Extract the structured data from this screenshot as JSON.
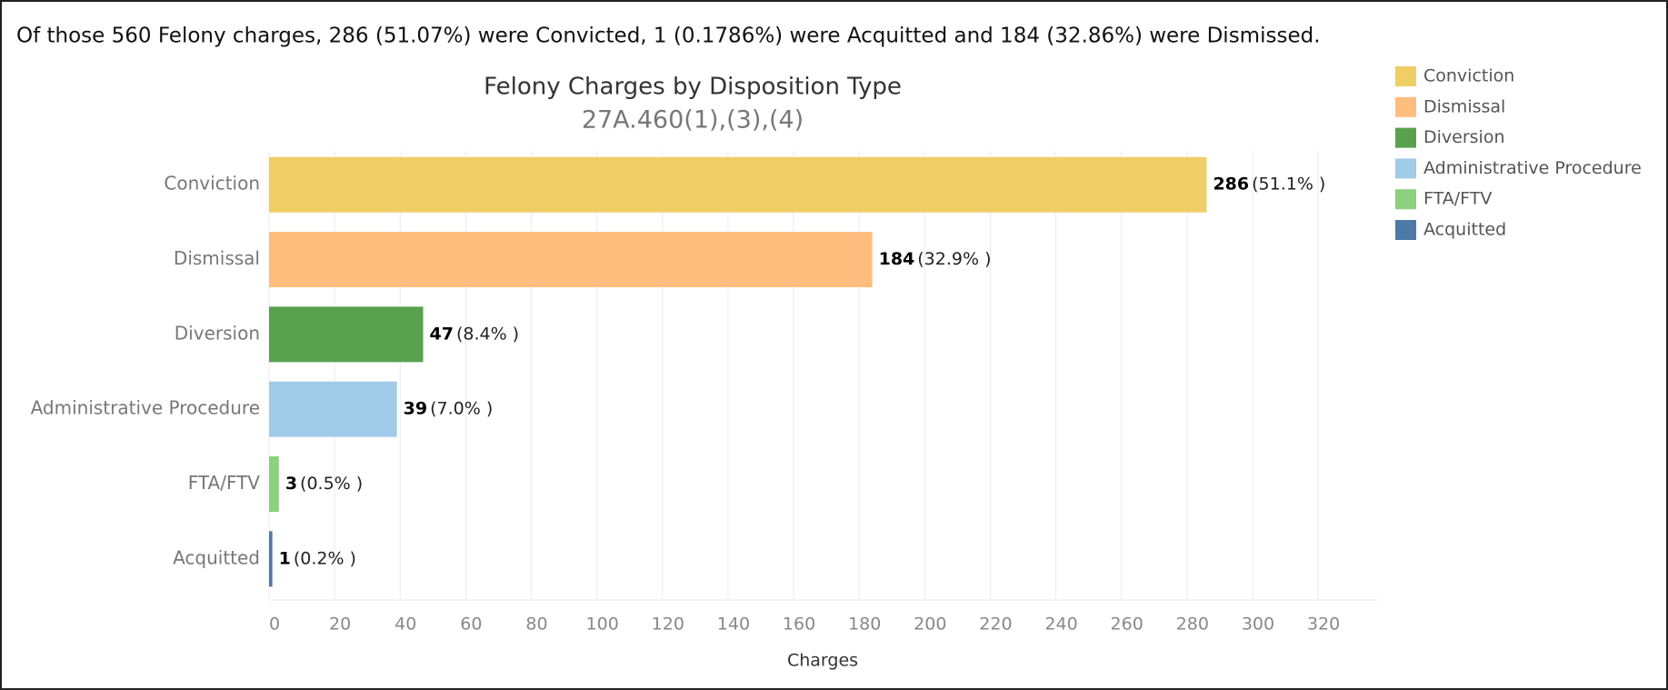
{
  "chart_data": {
    "type": "bar",
    "orientation": "horizontal",
    "header": "Of those 560 Felony charges, 286 (51.07%) were Convicted, 1 (0.1786%) were Acquitted and 184 (32.86%) were Dismissed.",
    "title": "Felony Charges by Disposition Type",
    "subtitle": "27A.460(1),(3),(4)",
    "xlabel": "Charges",
    "categories": [
      "Conviction",
      "Dismissal",
      "Diversion",
      "Administrative Procedure",
      "FTA/FTV",
      "Acquitted"
    ],
    "values": [
      286,
      184,
      47,
      39,
      3,
      1
    ],
    "percent_labels": [
      "(51.1% )",
      "(32.9% )",
      "(8.4% )",
      "(7.0% )",
      "(0.5% )",
      "(0.2% )"
    ],
    "colors": [
      "#f0ce66",
      "#ffbe7d",
      "#59a14f",
      "#a0cbe8",
      "#8cd17d",
      "#4e79a7"
    ],
    "xlim": [
      0,
      338
    ],
    "xticks": [
      0,
      20,
      40,
      60,
      80,
      100,
      120,
      140,
      160,
      180,
      200,
      220,
      240,
      260,
      280,
      300,
      320
    ],
    "grid": true,
    "legend": "right"
  }
}
